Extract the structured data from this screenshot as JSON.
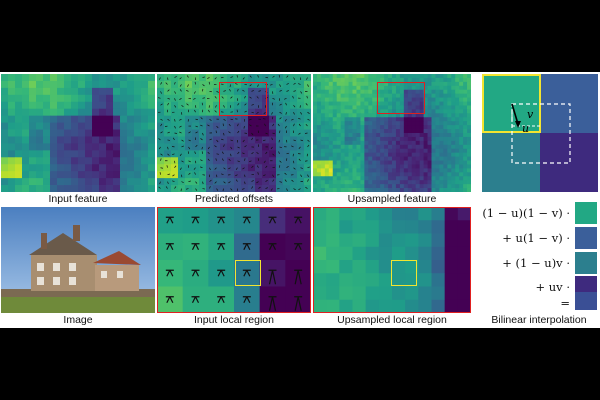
{
  "captions": {
    "input_feature": "Input feature",
    "predicted_offsets": "Predicted offsets",
    "upsampled_feature": "Upsampled feature",
    "image": "Image",
    "input_local_region": "Input local region",
    "upsampled_local_region": "Upsampled local region",
    "bilinear_interpolation": "Bilinear interpolation"
  },
  "interp_labels": {
    "u": "u",
    "v": "v"
  },
  "equation_terms": [
    {
      "text": "(1 − u)(1 − v) ·",
      "color": "#22a884"
    },
    {
      "text": "+ u(1 − v) ·",
      "color": "#3b5f9a"
    },
    {
      "text": "+ (1 − u)v ·",
      "color": "#2c7f8e"
    },
    {
      "text": "+ uv ·",
      "color": "#3e2a7e"
    },
    {
      "text": "=",
      "color": "#3a4f95"
    }
  ],
  "colors": {
    "band": "#000000",
    "highlight_red": "#e02020",
    "highlight_yellow": "#f2e530",
    "viridis_low": "#440154",
    "viridis_high": "#fde725"
  }
}
